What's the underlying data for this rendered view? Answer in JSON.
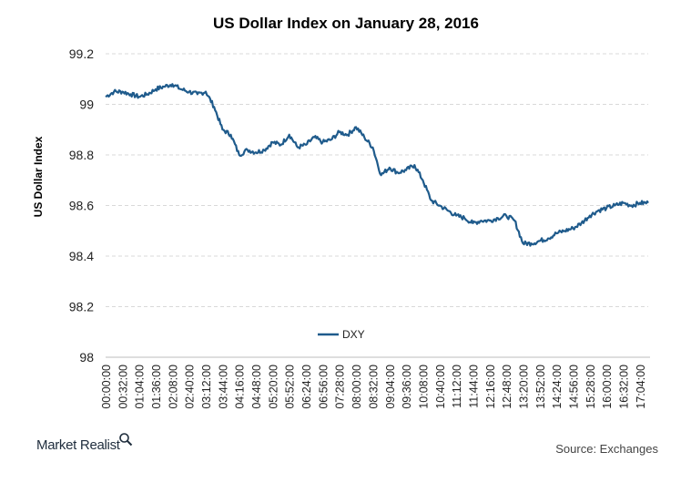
{
  "footer": {
    "brand": "Market Realist",
    "brand_icon": "magnifier-icon",
    "source": "Source: Exchanges"
  },
  "chart_data": {
    "type": "line",
    "title": "US Dollar Index on January 28, 2016",
    "xlabel": "",
    "ylabel": "US Dollar Index",
    "ylim": [
      98,
      99.2
    ],
    "yticks": [
      "99.2",
      "99",
      "98.8",
      "98.6",
      "98.4",
      "98.2",
      "98"
    ],
    "x_tick_labels": [
      "00:00:00",
      "00:32:00",
      "01:04:00",
      "01:36:00",
      "02:08:00",
      "02:40:00",
      "03:12:00",
      "03:44:00",
      "04:16:00",
      "04:48:00",
      "05:20:00",
      "05:52:00",
      "06:24:00",
      "06:56:00",
      "07:28:00",
      "08:00:00",
      "08:32:00",
      "09:04:00",
      "09:36:00",
      "10:08:00",
      "10:40:00",
      "11:12:00",
      "11:44:00",
      "12:16:00",
      "12:48:00",
      "13:20:00",
      "13:52:00",
      "14:24:00",
      "14:56:00",
      "15:28:00",
      "16:00:00",
      "16:32:00",
      "17:04:00"
    ],
    "grid": true,
    "legend": "bottom-center",
    "series": [
      {
        "name": "DXY",
        "color": "#1f5b8c",
        "x": [
          "00:00:00",
          "00:16:00",
          "00:32:00",
          "00:48:00",
          "01:04:00",
          "01:20:00",
          "01:36:00",
          "01:52:00",
          "02:08:00",
          "02:24:00",
          "02:40:00",
          "02:56:00",
          "03:12:00",
          "03:28:00",
          "03:44:00",
          "04:00:00",
          "04:16:00",
          "04:32:00",
          "04:48:00",
          "05:04:00",
          "05:20:00",
          "05:36:00",
          "05:52:00",
          "06:08:00",
          "06:24:00",
          "06:40:00",
          "06:56:00",
          "07:12:00",
          "07:28:00",
          "07:44:00",
          "08:00:00",
          "08:16:00",
          "08:32:00",
          "08:48:00",
          "09:04:00",
          "09:20:00",
          "09:36:00",
          "09:52:00",
          "10:08:00",
          "10:24:00",
          "10:40:00",
          "10:56:00",
          "11:12:00",
          "11:28:00",
          "11:44:00",
          "12:00:00",
          "12:16:00",
          "12:32:00",
          "12:48:00",
          "13:04:00",
          "13:20:00",
          "13:36:00",
          "13:52:00",
          "14:08:00",
          "14:24:00",
          "14:40:00",
          "14:56:00",
          "15:12:00",
          "15:28:00",
          "15:44:00",
          "16:00:00",
          "16:16:00",
          "16:32:00",
          "16:48:00",
          "17:04:00",
          "17:20:00"
        ],
        "values": [
          99.03,
          99.05,
          99.05,
          99.04,
          99.03,
          99.04,
          99.06,
          99.07,
          99.08,
          99.06,
          99.05,
          99.04,
          99.05,
          98.99,
          98.9,
          98.88,
          98.8,
          98.82,
          98.81,
          98.82,
          98.85,
          98.84,
          98.88,
          98.83,
          98.84,
          98.87,
          98.85,
          98.86,
          98.89,
          98.88,
          98.91,
          98.87,
          98.83,
          98.72,
          98.75,
          98.73,
          98.74,
          98.76,
          98.7,
          98.62,
          98.6,
          98.58,
          98.56,
          98.55,
          98.53,
          98.54,
          98.54,
          98.55,
          98.56,
          98.54,
          98.45,
          98.45,
          98.46,
          98.47,
          98.49,
          98.5,
          98.51,
          98.53,
          98.56,
          98.58,
          98.59,
          98.6,
          98.61,
          98.6,
          98.61,
          98.61
        ]
      }
    ]
  }
}
